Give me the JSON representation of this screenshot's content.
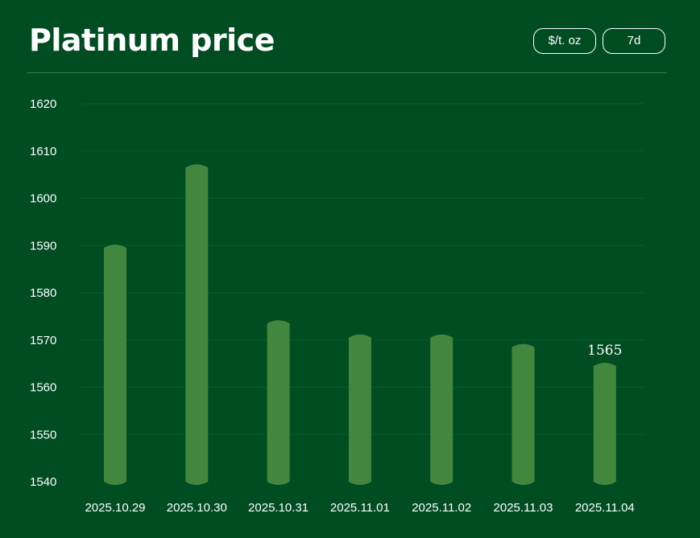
{
  "header": {
    "title": "Platinum price",
    "unit_label": "$/t. oz",
    "range_label": "7d"
  },
  "colors": {
    "background": "#004d22",
    "bar": "#43873f",
    "grid": "#0e5a2d",
    "text": "#ffffff"
  },
  "chart_data": {
    "type": "bar",
    "title": "Platinum price",
    "categories": [
      "2025.10.29",
      "2025.10.30",
      "2025.10.31",
      "2025.11.01",
      "2025.11.02",
      "2025.11.03",
      "2025.11.04"
    ],
    "values": [
      1589.5,
      1606.5,
      1573.5,
      1570.5,
      1570.5,
      1568.5,
      1564.5
    ],
    "ylim": [
      1540,
      1620
    ],
    "yticks": [
      1540,
      1550,
      1560,
      1570,
      1580,
      1590,
      1600,
      1610,
      1620
    ],
    "annotations": [
      {
        "category": "2025.11.04",
        "text": "1565"
      }
    ],
    "grid": true
  }
}
